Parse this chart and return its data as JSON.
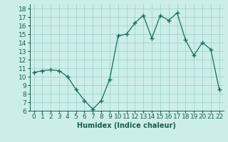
{
  "x": [
    0,
    1,
    2,
    3,
    4,
    5,
    6,
    7,
    8,
    9,
    10,
    11,
    12,
    13,
    14,
    15,
    16,
    17,
    18,
    19,
    20,
    21,
    22
  ],
  "y": [
    10.5,
    10.7,
    10.8,
    10.7,
    10.0,
    8.5,
    7.2,
    6.2,
    7.2,
    9.7,
    14.8,
    15.0,
    16.3,
    17.2,
    14.5,
    17.2,
    16.6,
    17.5,
    14.3,
    12.5,
    14.0,
    13.2,
    8.5
  ],
  "xlabel": "Humidex (Indice chaleur)",
  "xlim": [
    -0.5,
    22.5
  ],
  "ylim": [
    6,
    18.5
  ],
  "yticks": [
    6,
    7,
    8,
    9,
    10,
    11,
    12,
    13,
    14,
    15,
    16,
    17,
    18
  ],
  "xticks": [
    0,
    1,
    2,
    3,
    4,
    5,
    6,
    7,
    8,
    9,
    10,
    11,
    12,
    13,
    14,
    15,
    16,
    17,
    18,
    19,
    20,
    21,
    22
  ],
  "line_color": "#1a6b5c",
  "bg_color": "#cceee8",
  "grid_color": "#99cccc",
  "label_color": "#1a5c50",
  "font_size": 6.5,
  "xlabel_fontsize": 7.0
}
